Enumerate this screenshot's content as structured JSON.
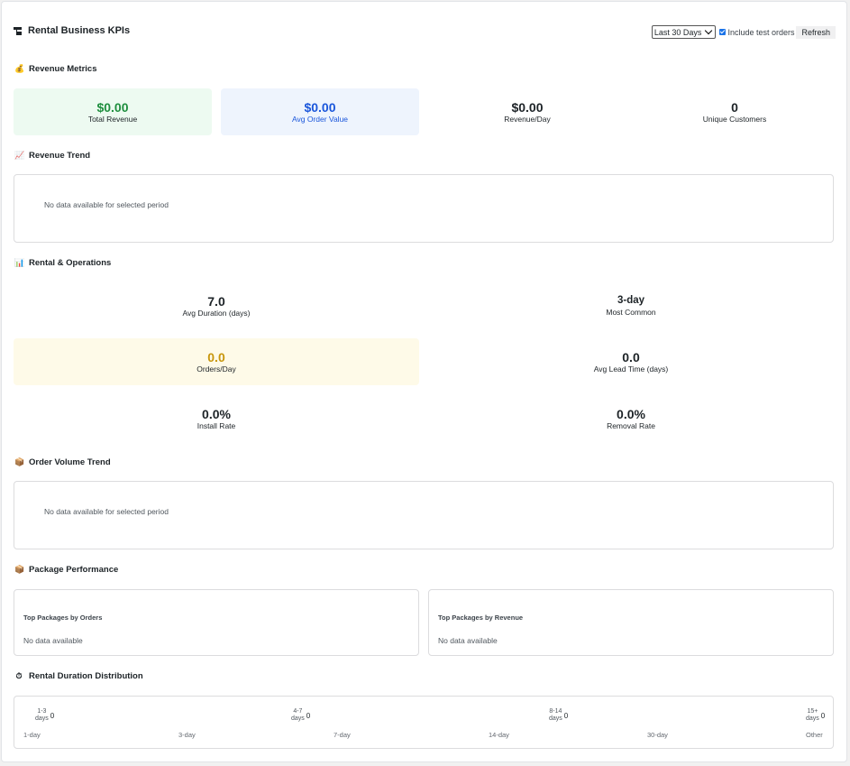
{
  "header": {
    "title": "Rental Business KPIs",
    "period_select": "Last 30 Days",
    "include_test_label": "Include test orders",
    "refresh_label": "Refresh"
  },
  "sections": {
    "revenue_metrics": "Revenue Metrics",
    "revenue_trend": "Revenue Trend",
    "rental_ops": "Rental & Operations",
    "order_volume": "Order Volume Trend",
    "package_perf": "Package Performance",
    "duration_dist": "Rental Duration Distribution"
  },
  "revenue": {
    "total_value": "$0.00",
    "total_label": "Total Revenue",
    "aov_value": "$0.00",
    "aov_label": "Avg Order Value",
    "per_day_value": "$0.00",
    "per_day_label": "Revenue/Day",
    "customers_value": "0",
    "customers_label": "Unique Customers"
  },
  "revenue_trend": {
    "empty": "No data available for selected period"
  },
  "ops": {
    "avg_duration_value": "7.0",
    "avg_duration_label": "Avg Duration (days)",
    "most_common_value": "3-day",
    "most_common_label": "Most Common",
    "orders_day_value": "0.0",
    "orders_day_label": "Orders/Day",
    "lead_time_value": "0.0",
    "lead_time_label": "Avg Lead Time (days)",
    "install_value": "0.0%",
    "install_label": "Install Rate",
    "removal_value": "0.0%",
    "removal_label": "Removal Rate"
  },
  "order_volume": {
    "empty": "No data available for selected period"
  },
  "packages": {
    "by_orders_title": "Top Packages by Orders",
    "by_orders_empty": "No data available",
    "by_revenue_title": "Top Packages by Revenue",
    "by_revenue_empty": "No data available"
  },
  "distribution": {
    "buckets": [
      {
        "range": "1-3",
        "unit": "days",
        "value": "0"
      },
      {
        "range": "4-7",
        "unit": "days",
        "value": "0"
      },
      {
        "range": "8-14",
        "unit": "days",
        "value": "0"
      },
      {
        "range": "15+",
        "unit": "days",
        "value": "0"
      }
    ],
    "axis": [
      "1-day",
      "3-day",
      "7-day",
      "14-day",
      "30-day",
      "Other"
    ]
  },
  "colors": {
    "green": "#1e8e3e",
    "blue": "#1a56db",
    "gold": "#c8960c",
    "green_bg": "#edfaf1",
    "blue_bg": "#eef4fd",
    "yellow_bg": "#fefae8"
  },
  "icons": {
    "title": "dashboard-icon",
    "revenue": "money-bag-icon",
    "trend": "chart-increasing-icon",
    "ops": "bar-chart-icon",
    "volume": "package-icon",
    "packages": "package-icon",
    "duration": "stopwatch-icon"
  }
}
